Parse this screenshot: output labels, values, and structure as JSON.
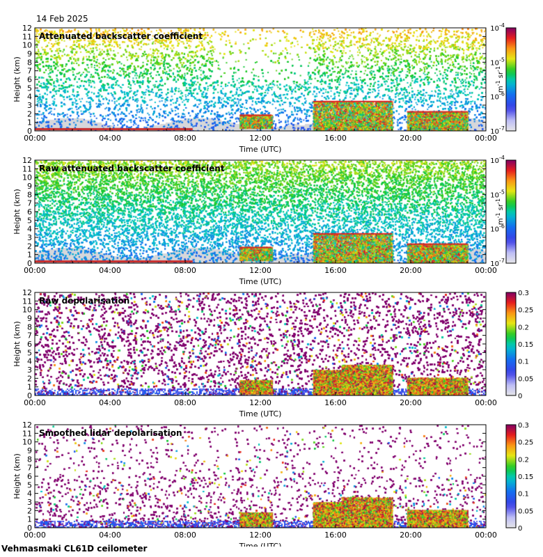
{
  "date": "14 Feb 2025",
  "footer": "Vehmasmaki CL61D ceilometer",
  "chart_data": [
    {
      "type": "heatmap",
      "title": "Attenuated backscatter coefficient",
      "xlabel": "Time (UTC)",
      "ylabel": "Height (km)",
      "x_ticks": [
        "00:00",
        "04:00",
        "08:00",
        "12:00",
        "16:00",
        "20:00",
        "00:00"
      ],
      "y_ticks": [
        "0",
        "1",
        "2",
        "3",
        "4",
        "5",
        "6",
        "7",
        "8",
        "9",
        "10",
        "11",
        "12"
      ],
      "ylim": [
        0,
        12
      ],
      "colorbar": {
        "scale": "log",
        "range": [
          1e-07,
          0.0001
        ],
        "ticks": [
          "10",
          "10",
          "10",
          "10"
        ],
        "tick_exponents": [
          "-7",
          "-6",
          "-5",
          "-4"
        ],
        "unit": "m",
        "unit_exponent": "-1",
        "unit_rest": " sr",
        "unit_rest_exponent": "-1"
      },
      "features": [
        {
          "label": "cloud layer",
          "time_start_h": 10.9,
          "time_end_h": 12.6,
          "height_km": [
            0.1,
            2.2
          ]
        },
        {
          "label": "precipitation / cloud",
          "time_start_h": 14.8,
          "time_end_h": 19.0,
          "height_km": [
            0,
            3.8
          ]
        },
        {
          "label": "cloud layer",
          "time_start_h": 19.8,
          "time_end_h": 23.0,
          "height_km": [
            0,
            2.4
          ]
        }
      ]
    },
    {
      "type": "heatmap",
      "title": "Raw attenuated backscatter coefficient",
      "xlabel": "Time (UTC)",
      "ylabel": "Height (km)",
      "x_ticks": [
        "00:00",
        "04:00",
        "08:00",
        "12:00",
        "16:00",
        "20:00",
        "00:00"
      ],
      "y_ticks": [
        "0",
        "1",
        "2",
        "3",
        "4",
        "5",
        "6",
        "7",
        "8",
        "9",
        "10",
        "11",
        "12"
      ],
      "ylim": [
        0,
        12
      ],
      "colorbar": {
        "scale": "log",
        "range": [
          1e-07,
          0.0001
        ],
        "ticks": [
          "10",
          "10",
          "10",
          "10"
        ],
        "tick_exponents": [
          "-7",
          "-6",
          "-5",
          "-4"
        ],
        "unit": "m",
        "unit_exponent": "-1",
        "unit_rest": " sr",
        "unit_rest_exponent": "-1"
      }
    },
    {
      "type": "heatmap",
      "title": "Raw depolarisation",
      "xlabel": "Time (UTC)",
      "ylabel": "Height (km)",
      "x_ticks": [
        "00:00",
        "04:00",
        "08:00",
        "12:00",
        "16:00",
        "20:00",
        "00:00"
      ],
      "y_ticks": [
        "0",
        "1",
        "2",
        "3",
        "4",
        "5",
        "6",
        "7",
        "8",
        "9",
        "10",
        "11",
        "12"
      ],
      "ylim": [
        0,
        12
      ],
      "colorbar": {
        "scale": "linear",
        "range": [
          0,
          0.3
        ],
        "ticks": [
          "0",
          "0.05",
          "0.1",
          "0.15",
          "0.2",
          "0.25",
          "0.3"
        ]
      }
    },
    {
      "type": "heatmap",
      "title": "Smoothed lidar depolarisation",
      "xlabel": "Time (UTC)",
      "ylabel": "Height (km)",
      "x_ticks": [
        "00:00",
        "04:00",
        "08:00",
        "12:00",
        "16:00",
        "20:00",
        "00:00"
      ],
      "y_ticks": [
        "0",
        "1",
        "2",
        "3",
        "4",
        "5",
        "6",
        "7",
        "8",
        "9",
        "10",
        "11",
        "12"
      ],
      "ylim": [
        0,
        12
      ],
      "colorbar": {
        "scale": "linear",
        "range": [
          0,
          0.3
        ],
        "ticks": [
          "0",
          "0.05",
          "0.1",
          "0.15",
          "0.2",
          "0.25",
          "0.3"
        ]
      }
    }
  ]
}
